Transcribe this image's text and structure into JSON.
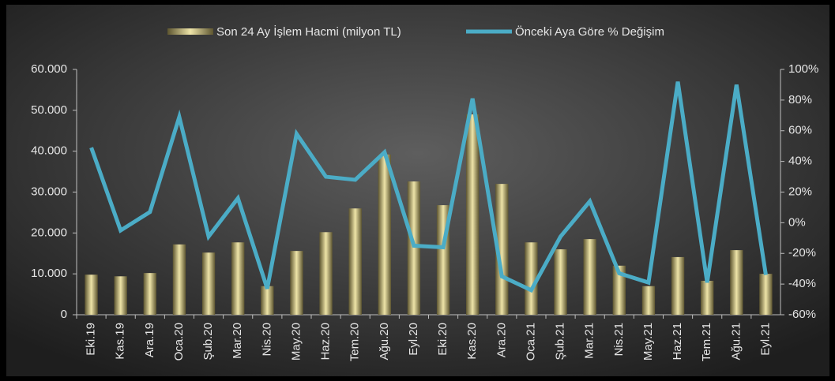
{
  "chart_data": {
    "type": "bar-line",
    "categories": [
      "Eki.19",
      "Kas.19",
      "Ara.19",
      "Oca.20",
      "Şub.20",
      "Mar.20",
      "Nis.20",
      "May.20",
      "Haz.20",
      "Tem.20",
      "Ağu.20",
      "Eyl.20",
      "Eki.20",
      "Kas.20",
      "Ara.20",
      "Oca.21",
      "Şub.21",
      "Mar.21",
      "Nis.21",
      "May.21",
      "Haz.21",
      "Tem.21",
      "Ağu.21",
      "Eyl.21"
    ],
    "series": [
      {
        "name": "Son 24 Ay İşlem Hacmi (milyon TL)",
        "color": "#c9bd78",
        "kind": "bar",
        "values": [
          9800,
          9400,
          10200,
          17200,
          15200,
          17700,
          7000,
          15600,
          20200,
          26000,
          39200,
          32600,
          26800,
          49000,
          32000,
          17700,
          16000,
          18500,
          12000,
          7000,
          14100,
          8300,
          15800,
          10000
        ]
      },
      {
        "name": "Önceki Aya Göre % Değişim",
        "color": "#4bacc6",
        "kind": "line",
        "axis": "y2",
        "values": [
          49,
          -5,
          7,
          69,
          -9,
          16,
          -43,
          58,
          30,
          28,
          46,
          -15,
          -16,
          81,
          -35,
          -44,
          -9,
          14,
          -33,
          -39,
          92,
          -39,
          90,
          -34
        ]
      }
    ],
    "ylim": [
      0,
      60000
    ],
    "yticks": [
      0,
      {
        "value": 10000,
        "label": "10.000"
      },
      {
        "value": 20000,
        "label": "20.000"
      },
      {
        "value": 30000,
        "label": "30.000"
      },
      {
        "value": 40000,
        "label": "40.000"
      },
      {
        "value": 50000,
        "label": "50.000"
      },
      {
        "value": 60000,
        "label": "60.000"
      }
    ],
    "y2lim": [
      -60,
      100
    ],
    "y2ticks": [
      {
        "value": -60,
        "label": "-60%"
      },
      {
        "value": -40,
        "label": "-40%"
      },
      {
        "value": -20,
        "label": "-20%"
      },
      {
        "value": 0,
        "label": "0%"
      },
      {
        "value": 20,
        "label": "20%"
      },
      {
        "value": 40,
        "label": "40%"
      },
      {
        "value": 60,
        "label": "60%"
      },
      {
        "value": 80,
        "label": "80%"
      },
      {
        "value": 100,
        "label": "100%"
      }
    ],
    "legend": "top"
  }
}
